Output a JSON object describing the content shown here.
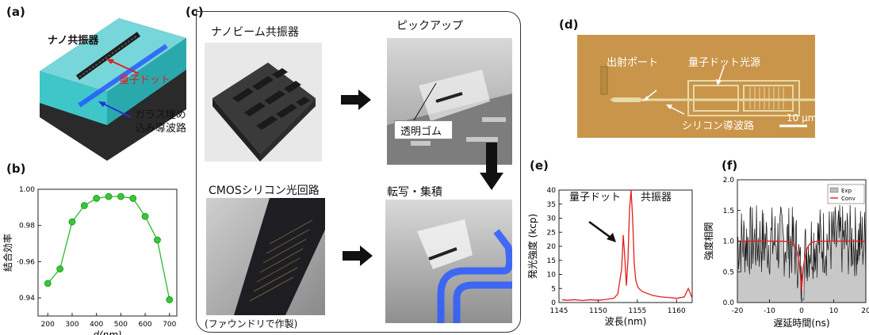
{
  "panel_a": {
    "label": "(a)",
    "nano_resonator": "ナノ共振器",
    "quantum_dot": "量子ドット",
    "glass_waveguide_line1": "ガラス埋め",
    "glass_waveguide_line2": "込み導波路"
  },
  "panel_b": {
    "label": "(b)"
  },
  "panel_c": {
    "label": "(c)",
    "nanobeam": "ナノビーム共振器",
    "pickup": "ピックアップ",
    "rubber": "透明ゴム",
    "cmos": "CMOSシリコン光回路",
    "transfer": "転写・集積",
    "foundry": "(ファウンドリで作製)"
  },
  "panel_d": {
    "label": "(d)",
    "output_port": "出射ポート",
    "qd_source": "量子ドット光源",
    "si_waveguide": "シリコン導波路",
    "scalebar": "10 µm"
  },
  "panel_e": {
    "label": "(e)",
    "qd": "量子ドット",
    "resonator": "共振器"
  },
  "panel_f": {
    "label": "(f)",
    "legend_exp": "Exp",
    "legend_conv": "Conv"
  },
  "chart_data": [
    {
      "type": "scatter",
      "panel": "b",
      "x": [
        200,
        250,
        300,
        350,
        400,
        450,
        500,
        550,
        600,
        650,
        700
      ],
      "y": [
        0.948,
        0.956,
        0.982,
        0.991,
        0.995,
        0.996,
        0.996,
        0.995,
        0.985,
        0.972,
        0.939
      ],
      "xlabel": "d(nm)",
      "ylabel": "結合効率",
      "xlim": [
        160,
        730
      ],
      "ylim": [
        0.93,
        1.0
      ],
      "xticks": [
        "200",
        "300",
        "400",
        "500",
        "600",
        "700"
      ],
      "yticks": [
        "0.94",
        "0.96",
        "0.98",
        "1.00"
      ],
      "ytick_labels_shown": [
        "0.94",
        "·0.96",
        "0.98",
        "1.00"
      ]
    },
    {
      "type": "line",
      "panel": "e",
      "xlabel": "波長(nm)",
      "ylabel": "発光強度 (kcp)",
      "xlim": [
        1145,
        1162
      ],
      "ylim": [
        0,
        40
      ],
      "xticks": [
        "1145",
        "1150",
        "1155",
        "1160"
      ],
      "yticks": [
        "0",
        "5",
        "10",
        "15",
        "20",
        "25",
        "30",
        "35",
        "40"
      ],
      "series": [
        {
          "x": [
            1145.4,
            1146,
            1147,
            1148,
            1149,
            1150,
            1151,
            1152,
            1152.5,
            1153.0,
            1153.2,
            1153.4,
            1153.6,
            1153.8,
            1154.0,
            1154.2,
            1154.4,
            1154.6,
            1154.8,
            1155.0,
            1155.2,
            1155.6,
            1156,
            1157,
            1158,
            1159,
            1160,
            1161,
            1161.5,
            1161.8,
            1162
          ],
          "y": [
            1,
            0.8,
            1,
            0.7,
            1,
            0.8,
            1.1,
            1.5,
            3,
            12,
            24,
            16,
            6,
            15,
            33,
            40,
            30,
            14,
            8,
            6,
            5,
            4,
            3.5,
            2.5,
            2,
            1.8,
            1.5,
            2,
            5,
            3,
            1.5
          ]
        }
      ]
    },
    {
      "type": "line",
      "panel": "f",
      "xlabel": "遅延時間(ns)",
      "ylabel": "強度相関",
      "xlim": [
        -20,
        20
      ],
      "ylim": [
        0,
        2.0
      ],
      "xticks": [
        "-20",
        "-10",
        "0",
        "10",
        "20"
      ],
      "yticks": [
        "0.0",
        "0.5",
        "1.0",
        "1.5",
        "2.0"
      ],
      "legend": [
        "Exp",
        "Conv"
      ],
      "legend_position": "top-right",
      "conv_min": 0.18,
      "conv_min_at": 0,
      "baseline": 1.0
    }
  ],
  "colors": {
    "green": "#2db82d",
    "red": "#e02020",
    "cyan_glass": "#5fe3e3",
    "waveguide_blue": "#2255ff",
    "chip_bg": "#c9954a"
  }
}
